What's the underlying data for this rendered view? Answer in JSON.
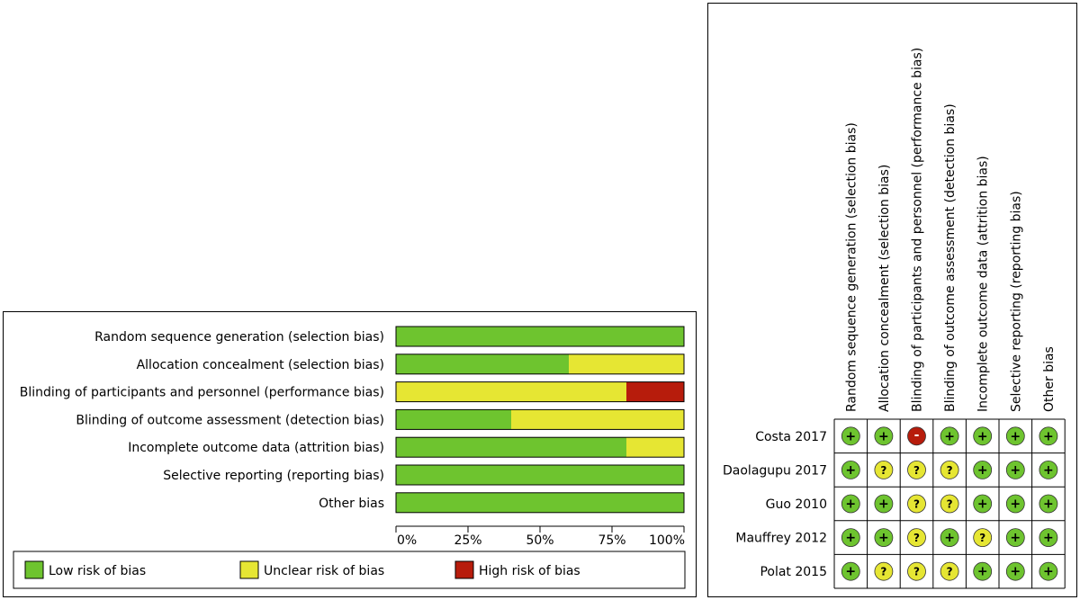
{
  "chart_data": [
    {
      "type": "bar",
      "stacked": true,
      "orientation": "horizontal",
      "title": "",
      "categories": [
        "Random sequence generation (selection bias)",
        "Allocation concealment (selection bias)",
        "Blinding of participants and personnel (performance bias)",
        "Blinding of outcome assessment (detection bias)",
        "Incomplete outcome data (attrition bias)",
        "Selective reporting (reporting bias)",
        "Other bias"
      ],
      "series": [
        {
          "name": "Low risk of bias",
          "color": "#6ec42f",
          "values": [
            100,
            60,
            0,
            40,
            80,
            100,
            100
          ]
        },
        {
          "name": "Unclear risk of bias",
          "color": "#e6e633",
          "values": [
            0,
            40,
            80,
            60,
            20,
            0,
            0
          ]
        },
        {
          "name": "High risk of bias",
          "color": "#b71c0c",
          "values": [
            0,
            0,
            20,
            0,
            0,
            0,
            0
          ]
        }
      ],
      "xlim": [
        0,
        100
      ],
      "xticks": [
        "0%",
        "25%",
        "50%",
        "75%",
        "100%"
      ],
      "xlabel": "",
      "ylabel": ""
    },
    {
      "type": "table",
      "columns": [
        "Random sequence generation (selection bias)",
        "Allocation concealment (selection bias)",
        "Blinding of participants and personnel (performance bias)",
        "Blinding of outcome assessment (detection bias)",
        "Incomplete outcome data (attrition bias)",
        "Selective reporting (reporting bias)",
        "Other bias"
      ],
      "rows": [
        {
          "study": "Costa 2017",
          "ratings": [
            "+",
            "+",
            "-",
            "+",
            "+",
            "+",
            "+"
          ]
        },
        {
          "study": "Daolagupu 2017",
          "ratings": [
            "+",
            "?",
            "?",
            "?",
            "+",
            "+",
            "+"
          ]
        },
        {
          "study": "Guo 2010",
          "ratings": [
            "+",
            "+",
            "?",
            "?",
            "+",
            "+",
            "+"
          ]
        },
        {
          "study": "Mauffrey 2012",
          "ratings": [
            "+",
            "+",
            "?",
            "+",
            "?",
            "+",
            "+"
          ]
        },
        {
          "study": "Polat 2015",
          "ratings": [
            "+",
            "?",
            "?",
            "?",
            "+",
            "+",
            "+"
          ]
        }
      ],
      "rating_colors": {
        "+": "#6ec42f",
        "?": "#e6e633",
        "-": "#b71c0c"
      }
    }
  ]
}
